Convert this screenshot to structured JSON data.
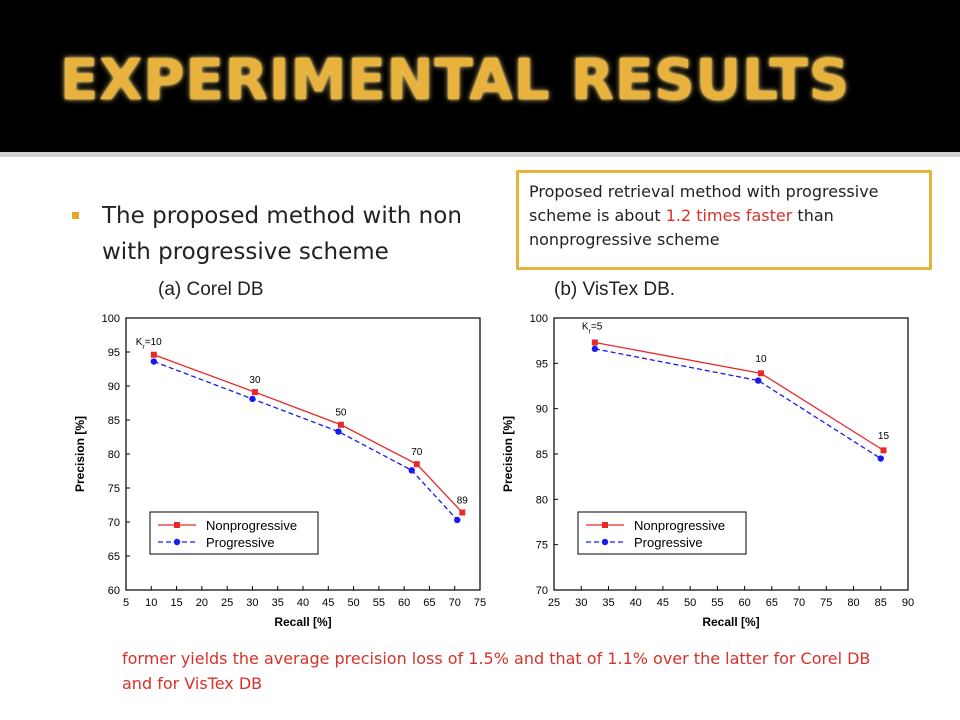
{
  "slide": {
    "title": "EXPERIMENTAL RESULTS",
    "bullet": "The proposed method with nonprogressive scheme vs. with progressive scheme",
    "bullet_line1": "The proposed method with non",
    "bullet_line2": "with progressive scheme",
    "callout": {
      "part1": "Proposed retrieval method with progressive scheme is about ",
      "highlight": "1.2 times faster",
      "part2": " than nonprogressive scheme"
    },
    "caption_a": "(a) Corel DB",
    "caption_b": "(b) VisTex DB.",
    "bottom_note": "former yields the average precision loss of 1.5% and that of 1.1% over the latter for Corel DB and for VisTex DB"
  },
  "colors": {
    "accent": "#e8b23c",
    "red": "#d8312a",
    "blue": "#1a1aee"
  },
  "chart_data": [
    {
      "type": "line",
      "xlabel": "Recall [%]",
      "ylabel": "Precision [%]",
      "xlim": [
        5,
        75
      ],
      "ylim": [
        60,
        100
      ],
      "xticks": [
        5,
        10,
        15,
        20,
        25,
        30,
        35,
        40,
        45,
        50,
        55,
        60,
        65,
        70,
        75
      ],
      "yticks": [
        60,
        65,
        70,
        75,
        80,
        85,
        90,
        95,
        100
      ],
      "legend": "bottom-left",
      "series": [
        {
          "name": "Nonprogressive",
          "color": "#e8292a",
          "dash": "solid",
          "marker": "square",
          "x": [
            10.5,
            30.5,
            47.5,
            62.5,
            71.5
          ],
          "y": [
            94.6,
            89.1,
            84.3,
            78.5,
            71.4
          ]
        },
        {
          "name": "Progressive",
          "color": "#1a1aee",
          "dash": "dashed",
          "marker": "circle",
          "x": [
            10.5,
            30,
            47,
            61.5,
            70.5
          ],
          "y": [
            93.6,
            88.1,
            83.3,
            77.6,
            70.3
          ]
        }
      ],
      "annotations": [
        {
          "text": "K",
          "sub": "r",
          "tail": "=10",
          "x": 9.5,
          "y": 95.3
        },
        {
          "text": "30",
          "x": 30.5,
          "y": 89.7
        },
        {
          "text": "50",
          "x": 47.5,
          "y": 84.9
        },
        {
          "text": "70",
          "x": 62.5,
          "y": 79.1
        },
        {
          "text": "89",
          "x": 71.5,
          "y": 72.0
        }
      ]
    },
    {
      "type": "line",
      "xlabel": "Recall [%]",
      "ylabel": "Precision [%]",
      "xlim": [
        25,
        90
      ],
      "ylim": [
        70,
        100
      ],
      "xticks": [
        25,
        30,
        35,
        40,
        45,
        50,
        55,
        60,
        65,
        70,
        75,
        80,
        85,
        90
      ],
      "yticks": [
        70,
        75,
        80,
        85,
        90,
        95,
        100
      ],
      "legend": "bottom-left",
      "series": [
        {
          "name": "Nonprogressive",
          "color": "#e8292a",
          "dash": "solid",
          "marker": "square",
          "x": [
            32.5,
            63,
            85.5
          ],
          "y": [
            97.3,
            93.9,
            85.4
          ]
        },
        {
          "name": "Progressive",
          "color": "#1a1aee",
          "dash": "dashed",
          "marker": "circle",
          "x": [
            32.5,
            62.5,
            85
          ],
          "y": [
            96.6,
            93.1,
            84.5
          ]
        }
      ],
      "annotations": [
        {
          "text": "K",
          "sub": "r",
          "tail": "=5",
          "x": 32,
          "y": 98.2
        },
        {
          "text": "10",
          "x": 63,
          "y": 94.6
        },
        {
          "text": "15",
          "x": 85.5,
          "y": 86.1
        }
      ]
    }
  ]
}
